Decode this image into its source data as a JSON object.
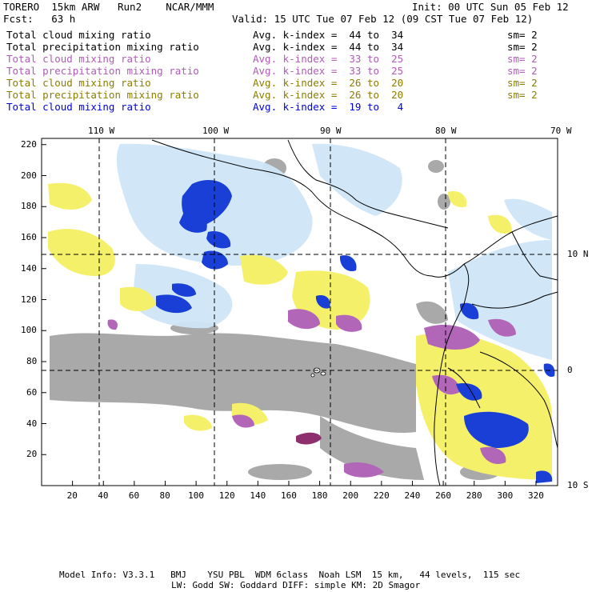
{
  "header": {
    "model": "TORERO  15km ARW   Run2    NCAR/MMM",
    "init": "Init: 00 UTC Sun 05 Feb 12",
    "fcst": "Fcst:   63 h",
    "valid": "Valid: 15 UTC Tue 07 Feb 12 (09 CST Tue 07 Feb 12)"
  },
  "legend": [
    {
      "field": "Total cloud mixing ratio",
      "avg": "Avg. k-index =  44 to  34",
      "sm": "sm= 2",
      "color": "#000000"
    },
    {
      "field": "Total precipitation mixing ratio",
      "avg": "Avg. k-index =  44 to  34",
      "sm": "sm= 2",
      "color": "#000000"
    },
    {
      "field": "Total cloud mixing ratio",
      "avg": "Avg. k-index =  33 to  25",
      "sm": "sm= 2",
      "color": "#b05bb8"
    },
    {
      "field": "Total precipitation mixing ratio",
      "avg": "Avg. k-index =  33 to  25",
      "sm": "sm= 2",
      "color": "#b05bb8"
    },
    {
      "field": "Total cloud mixing ratio",
      "avg": "Avg. k-index =  26 to  20",
      "sm": "sm= 2",
      "color": "#8a7d00"
    },
    {
      "field": "Total precipitation mixing ratio",
      "avg": "Avg. k-index =  26 to  20",
      "sm": "sm= 2",
      "color": "#8a7d00"
    },
    {
      "field": "Total cloud mixing ratio",
      "avg": "Avg. k-index =  19 to   4",
      "sm": "",
      "color": "#0000dd"
    }
  ],
  "lon_labels": [
    "110 W",
    "100 W",
    "90 W",
    "80 W",
    "70 W"
  ],
  "lat_labels": [
    "10 N",
    "0",
    "10 S"
  ],
  "y_ticks": [
    "20",
    "40",
    "60",
    "80",
    "100",
    "120",
    "140",
    "160",
    "180",
    "200",
    "220"
  ],
  "x_ticks": [
    "20",
    "40",
    "60",
    "80",
    "100",
    "120",
    "140",
    "160",
    "180",
    "200",
    "220",
    "240",
    "260",
    "280",
    "300",
    "320"
  ],
  "footer": {
    "line1": "Model Info: V3.3.1   BMJ    YSU PBL  WDM 6class  Noah LSM  15 km,   44 levels,  115 sec",
    "line2": "LW: Godd SW: Goddard DIFF: simple KM: 2D Smagor"
  }
}
